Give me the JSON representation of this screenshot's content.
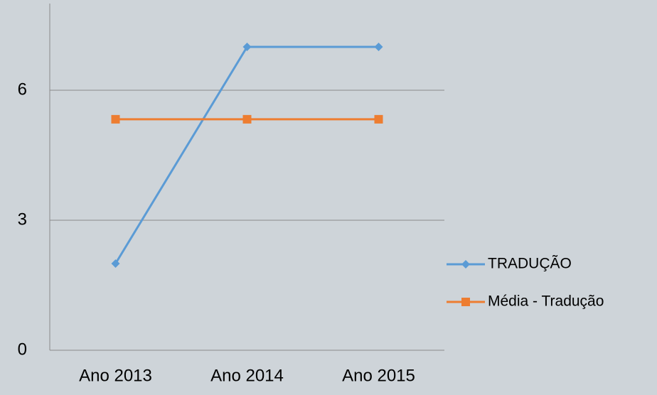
{
  "chart_data": {
    "type": "line",
    "categories": [
      "Ano 2013",
      "Ano 2014",
      "Ano 2015"
    ],
    "series": [
      {
        "name": "TRADUÇÃO",
        "color": "#5b9bd5",
        "marker": "diamond",
        "values": [
          2,
          7,
          7
        ]
      },
      {
        "name": "Média - Tradução",
        "color": "#ed7d31",
        "marker": "square",
        "values": [
          5.33,
          5.33,
          5.33
        ]
      }
    ],
    "ylim": [
      0,
      8
    ],
    "yticks": [
      0,
      3,
      6
    ],
    "grid": true,
    "legend": "right"
  }
}
